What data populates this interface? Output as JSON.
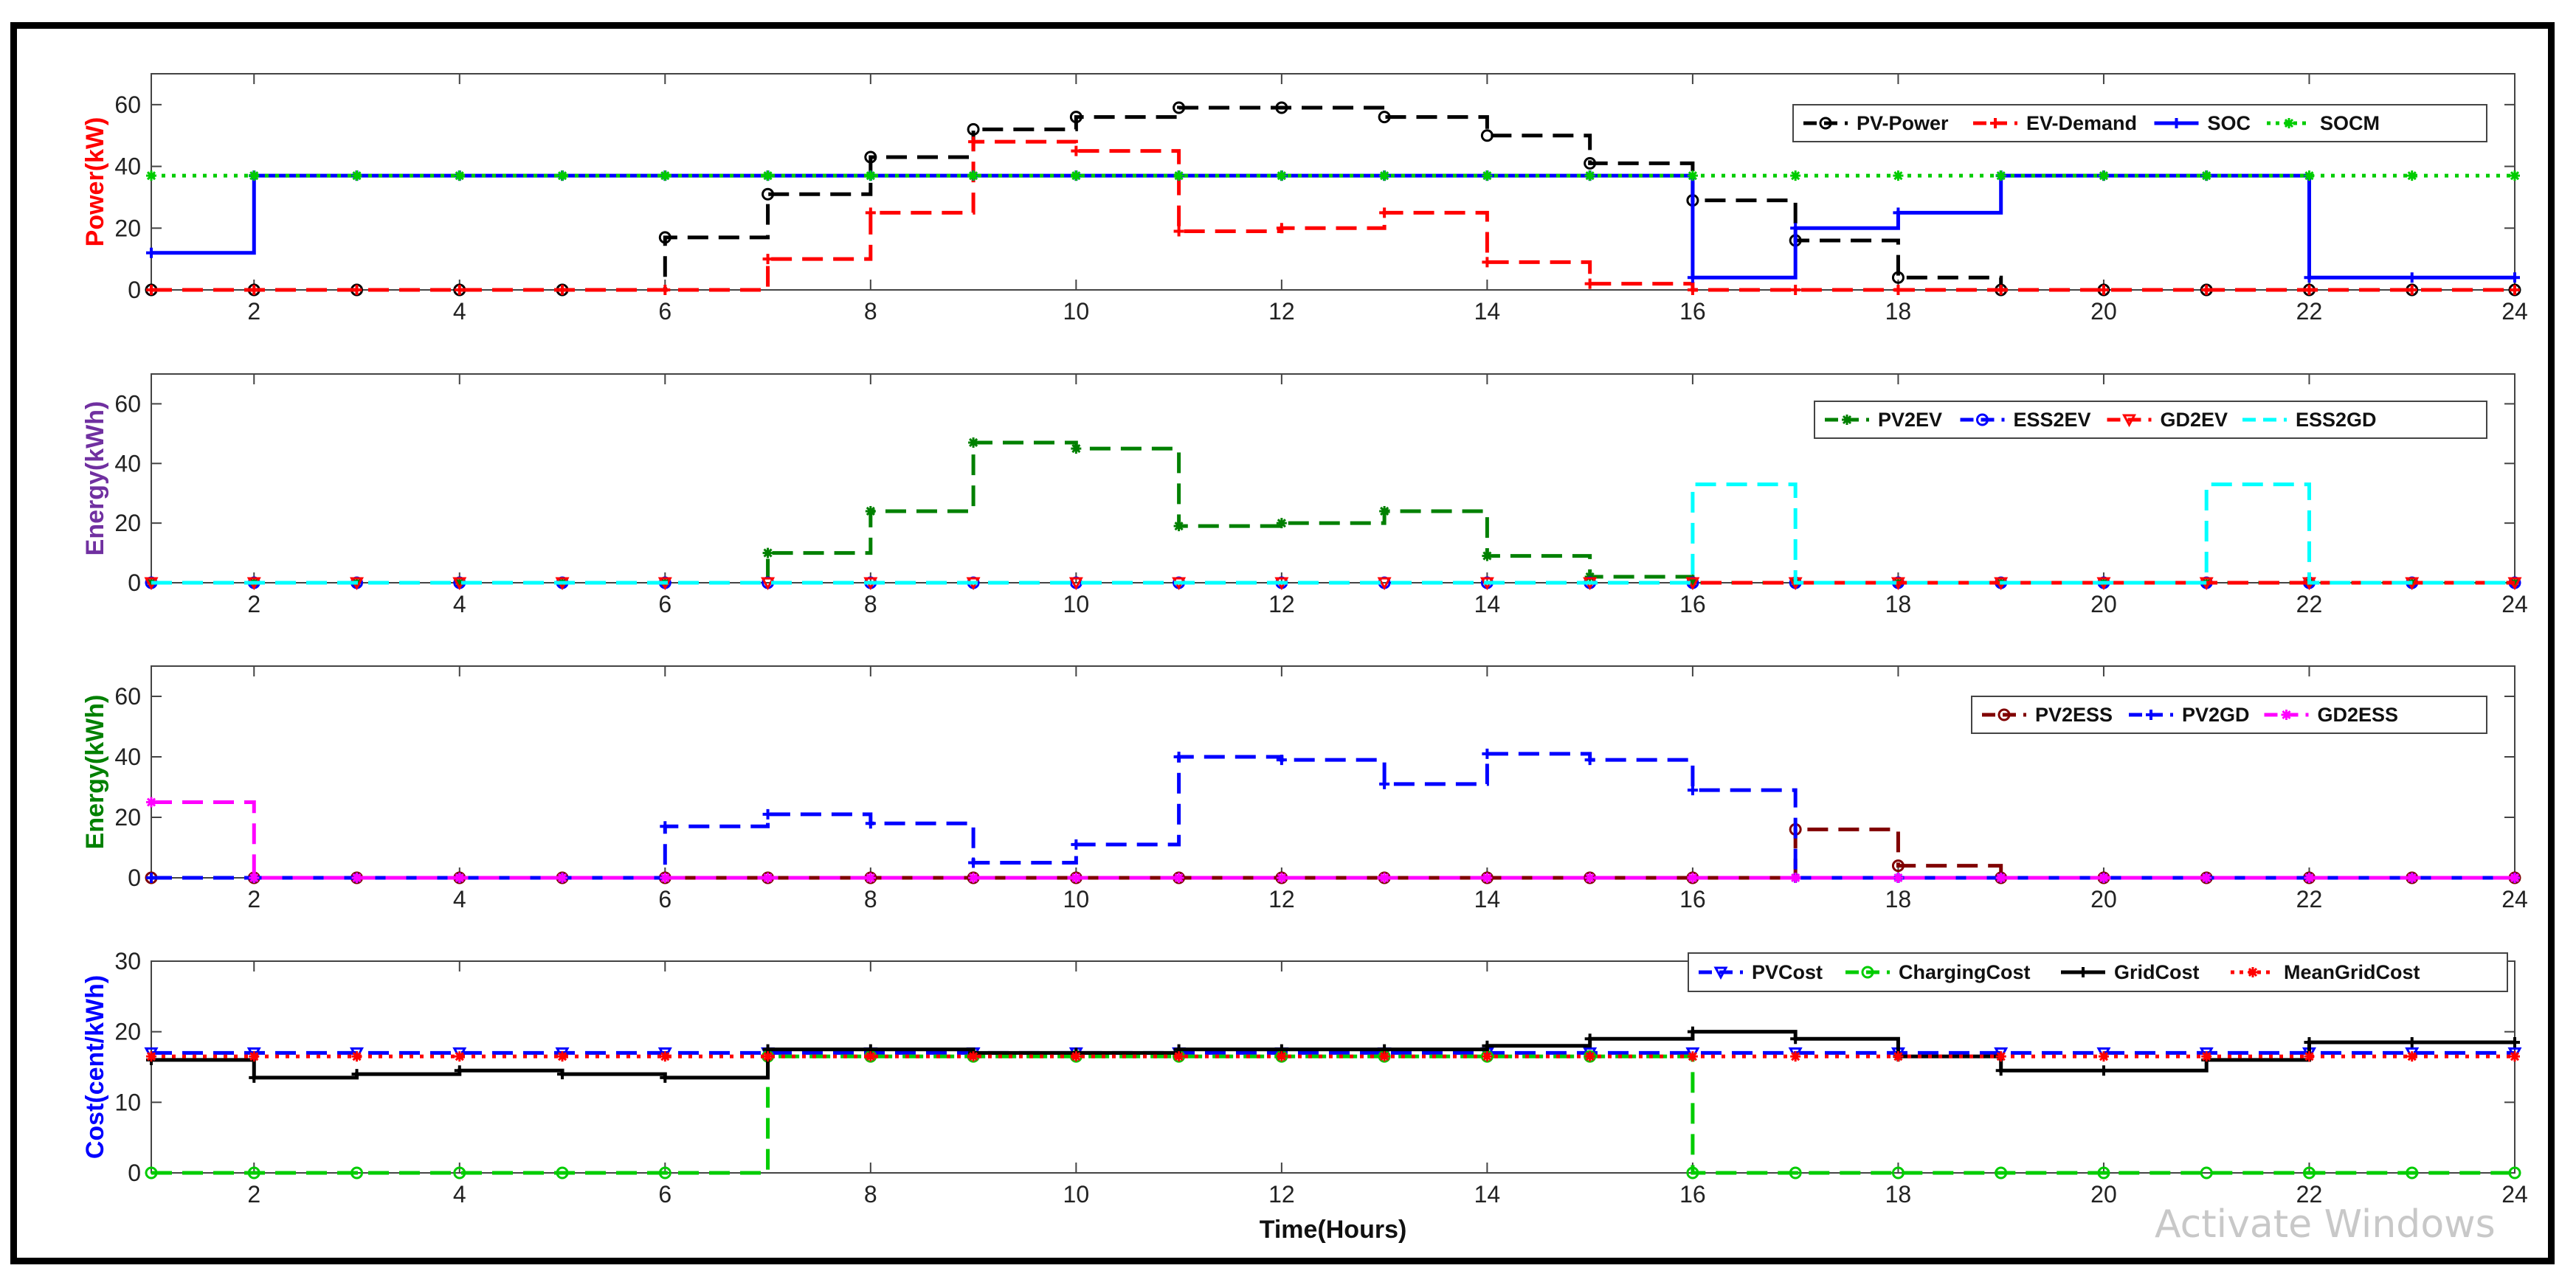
{
  "watermark": "Activate Windows",
  "chart_data": [
    {
      "type": "line",
      "ylabel": "Power(kW)",
      "ylabel_color": "#ff0000",
      "xlabel": "",
      "xlim": [
        1,
        24
      ],
      "ylim": [
        0,
        70
      ],
      "yticks": [
        0,
        20,
        40,
        60
      ],
      "xticks": [
        2,
        4,
        6,
        8,
        10,
        12,
        14,
        16,
        18,
        20,
        22,
        24
      ],
      "x": [
        1,
        2,
        3,
        4,
        5,
        6,
        7,
        8,
        9,
        10,
        11,
        12,
        13,
        14,
        15,
        16,
        17,
        18,
        19,
        20,
        21,
        22,
        23,
        24
      ],
      "legend_position": "top-right",
      "series": [
        {
          "name": "PV-Power",
          "color": "#000000",
          "dash": "dash",
          "marker": "o",
          "values": [
            0,
            0,
            0,
            0,
            0,
            17,
            31,
            43,
            52,
            56,
            59,
            59,
            56,
            50,
            41,
            29,
            16,
            4,
            0,
            0,
            0,
            0,
            0,
            0
          ]
        },
        {
          "name": "EV-Demand",
          "color": "#ff0000",
          "dash": "dash",
          "marker": "+",
          "values": [
            0,
            0,
            0,
            0,
            0,
            0,
            10,
            25,
            48,
            45,
            19,
            20,
            25,
            9,
            2,
            0,
            0,
            0,
            0,
            0,
            0,
            0,
            0,
            0
          ]
        },
        {
          "name": "SOC",
          "color": "#0000ff",
          "dash": "solid",
          "marker": "+",
          "values": [
            12,
            37,
            37,
            37,
            37,
            37,
            37,
            37,
            37,
            37,
            37,
            37,
            37,
            37,
            37,
            4,
            20,
            25,
            37,
            37,
            37,
            4,
            4,
            4
          ]
        },
        {
          "name": "SOCM",
          "color": "#00cc00",
          "dash": "dot",
          "marker": "*",
          "values": [
            37,
            37,
            37,
            37,
            37,
            37,
            37,
            37,
            37,
            37,
            37,
            37,
            37,
            37,
            37,
            37,
            37,
            37,
            37,
            37,
            37,
            37,
            37,
            37
          ]
        }
      ]
    },
    {
      "type": "line",
      "ylabel": "Energy(kWh)",
      "ylabel_color": "#7030a0",
      "xlabel": "",
      "xlim": [
        1,
        24
      ],
      "ylim": [
        0,
        70
      ],
      "yticks": [
        0,
        20,
        40,
        60
      ],
      "xticks": [
        2,
        4,
        6,
        8,
        10,
        12,
        14,
        16,
        18,
        20,
        22,
        24
      ],
      "x": [
        1,
        2,
        3,
        4,
        5,
        6,
        7,
        8,
        9,
        10,
        11,
        12,
        13,
        14,
        15,
        16,
        17,
        18,
        19,
        20,
        21,
        22,
        23,
        24
      ],
      "legend_position": "top-right",
      "series": [
        {
          "name": "PV2EV",
          "color": "#008000",
          "dash": "dash",
          "marker": "*",
          "values": [
            0,
            0,
            0,
            0,
            0,
            0,
            10,
            24,
            47,
            45,
            19,
            20,
            24,
            9,
            2,
            0,
            0,
            0,
            0,
            0,
            0,
            0,
            0,
            0
          ]
        },
        {
          "name": "ESS2EV",
          "color": "#0000ff",
          "dash": "dash",
          "marker": "o",
          "values": [
            0,
            0,
            0,
            0,
            0,
            0,
            0,
            0,
            0,
            0,
            0,
            0,
            0,
            0,
            0,
            0,
            0,
            0,
            0,
            0,
            0,
            0,
            0,
            0
          ]
        },
        {
          "name": "GD2EV",
          "color": "#ff0000",
          "dash": "dash",
          "marker": "v",
          "values": [
            0,
            0,
            0,
            0,
            0,
            0,
            0,
            0,
            0,
            0,
            0,
            0,
            0,
            0,
            0,
            0,
            0,
            0,
            0,
            0,
            0,
            0,
            0,
            0
          ]
        },
        {
          "name": "ESS2GD",
          "color": "#00ffff",
          "dash": "dash",
          "marker": "",
          "values": [
            0,
            0,
            0,
            0,
            0,
            0,
            0,
            0,
            0,
            0,
            0,
            0,
            0,
            0,
            0,
            33,
            0,
            0,
            0,
            0,
            33,
            0,
            0,
            0
          ]
        }
      ]
    },
    {
      "type": "line",
      "ylabel": "Energy(kWh)",
      "ylabel_color": "#008000",
      "xlabel": "",
      "xlim": [
        1,
        24
      ],
      "ylim": [
        0,
        70
      ],
      "yticks": [
        0,
        20,
        40,
        60
      ],
      "xticks": [
        2,
        4,
        6,
        8,
        10,
        12,
        14,
        16,
        18,
        20,
        22,
        24
      ],
      "x": [
        1,
        2,
        3,
        4,
        5,
        6,
        7,
        8,
        9,
        10,
        11,
        12,
        13,
        14,
        15,
        16,
        17,
        18,
        19,
        20,
        21,
        22,
        23,
        24
      ],
      "legend_position": "top-right",
      "series": [
        {
          "name": "PV2ESS",
          "color": "#800000",
          "dash": "dash",
          "marker": "o",
          "values": [
            0,
            0,
            0,
            0,
            0,
            0,
            0,
            0,
            0,
            0,
            0,
            0,
            0,
            0,
            0,
            0,
            16,
            4,
            0,
            0,
            0,
            0,
            0,
            0
          ]
        },
        {
          "name": "PV2GD",
          "color": "#0000ff",
          "dash": "dash",
          "marker": "+",
          "values": [
            0,
            0,
            0,
            0,
            0,
            17,
            21,
            18,
            5,
            11,
            40,
            39,
            31,
            41,
            39,
            29,
            0,
            0,
            0,
            0,
            0,
            0,
            0,
            0
          ]
        },
        {
          "name": "GD2ESS",
          "color": "#ff00ff",
          "dash": "dash",
          "marker": "*",
          "values": [
            25,
            0,
            0,
            0,
            0,
            0,
            0,
            0,
            0,
            0,
            0,
            0,
            0,
            0,
            0,
            0,
            0,
            0,
            0,
            0,
            0,
            0,
            0,
            0
          ]
        }
      ]
    },
    {
      "type": "line",
      "ylabel": "Cost(cent/kWh)",
      "ylabel_color": "#0000ff",
      "xlabel": "Time(Hours)",
      "xlim": [
        1,
        24
      ],
      "ylim": [
        0,
        30
      ],
      "yticks": [
        0,
        10,
        20,
        30
      ],
      "xticks": [
        2,
        4,
        6,
        8,
        10,
        12,
        14,
        16,
        18,
        20,
        22,
        24
      ],
      "x": [
        1,
        2,
        3,
        4,
        5,
        6,
        7,
        8,
        9,
        10,
        11,
        12,
        13,
        14,
        15,
        16,
        17,
        18,
        19,
        20,
        21,
        22,
        23,
        24
      ],
      "legend_position": "top-right",
      "series": [
        {
          "name": "PVCost",
          "color": "#0000ff",
          "dash": "dash",
          "marker": "v",
          "values": [
            17,
            17,
            17,
            17,
            17,
            17,
            17,
            17,
            17,
            17,
            17,
            17,
            17,
            17,
            17,
            17,
            17,
            17,
            17,
            17,
            17,
            17,
            17,
            17
          ]
        },
        {
          "name": "ChargingCost",
          "color": "#00cc00",
          "dash": "dash",
          "marker": "o",
          "values": [
            0,
            0,
            0,
            0,
            0,
            0,
            16.5,
            16.5,
            16.5,
            16.5,
            16.5,
            16.5,
            16.5,
            16.5,
            16.5,
            0,
            0,
            0,
            0,
            0,
            0,
            0,
            0,
            0
          ]
        },
        {
          "name": "GridCost",
          "color": "#000000",
          "dash": "solid",
          "marker": "+",
          "values": [
            16,
            13.5,
            14,
            14.5,
            14,
            13.5,
            17.5,
            17.5,
            17,
            17,
            17.5,
            17.5,
            17.5,
            18,
            19,
            20,
            19,
            16.5,
            14.5,
            14.5,
            16,
            18.5,
            18.5,
            18.5
          ]
        },
        {
          "name": "MeanGridCost",
          "color": "#ff0000",
          "dash": "dot",
          "marker": "*",
          "values": [
            16.5,
            16.5,
            16.5,
            16.5,
            16.5,
            16.5,
            16.5,
            16.5,
            16.5,
            16.5,
            16.5,
            16.5,
            16.5,
            16.5,
            16.5,
            16.5,
            16.5,
            16.5,
            16.5,
            16.5,
            16.5,
            16.5,
            16.5,
            16.5
          ]
        }
      ]
    }
  ]
}
